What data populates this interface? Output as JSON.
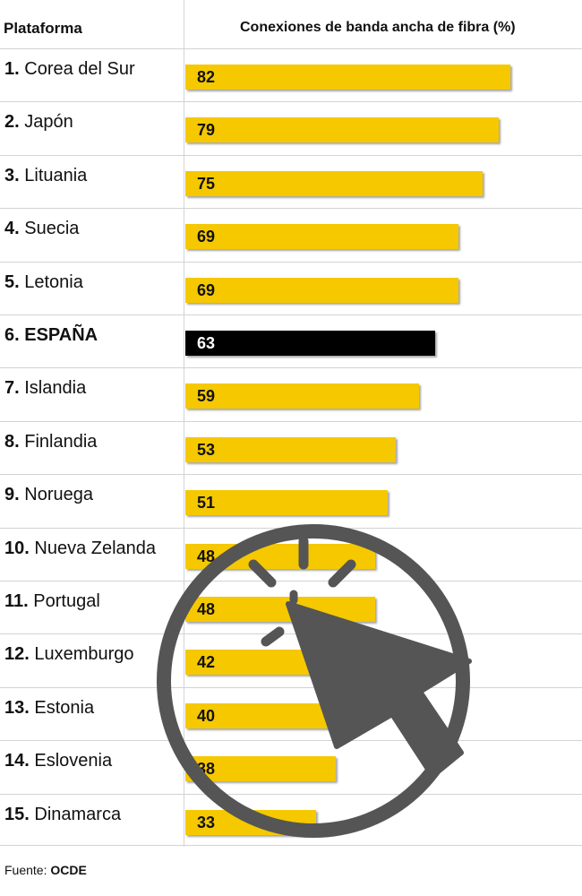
{
  "header": {
    "left": "Plataforma",
    "right": "Conexiones de banda ancha de fibra (%)"
  },
  "chart_data": {
    "type": "bar",
    "orientation": "horizontal",
    "xlabel": "Conexiones de banda ancha de fibra (%)",
    "ylabel": "Plataforma",
    "xlim": [
      0,
      100
    ],
    "categories": [
      "Corea del Sur",
      "Japón",
      "Lituania",
      "Suecia",
      "Letonia",
      "ESPAÑA",
      "Islandia",
      "Finlandia",
      "Noruega",
      "Nueva Zelanda",
      "Portugal",
      "Luxemburgo",
      "Estonia",
      "Eslovenia",
      "Dinamarca"
    ],
    "ranks": [
      "1.",
      "2.",
      "3.",
      "4.",
      "5.",
      "6.",
      "7.",
      "8.",
      "9.",
      "10.",
      "11.",
      "12.",
      "13.",
      "14.",
      "15."
    ],
    "values": [
      82,
      79,
      75,
      69,
      69,
      63,
      59,
      53,
      51,
      48,
      48,
      42,
      40,
      38,
      33
    ],
    "highlight": "ESPAÑA",
    "colors": {
      "bar": "#f5c800",
      "highlight": "#000000"
    }
  },
  "source": {
    "label": "Fuente:",
    "name": "OCDE"
  },
  "overlay": {
    "icon": "cursor-click-icon",
    "color": "#555555"
  }
}
